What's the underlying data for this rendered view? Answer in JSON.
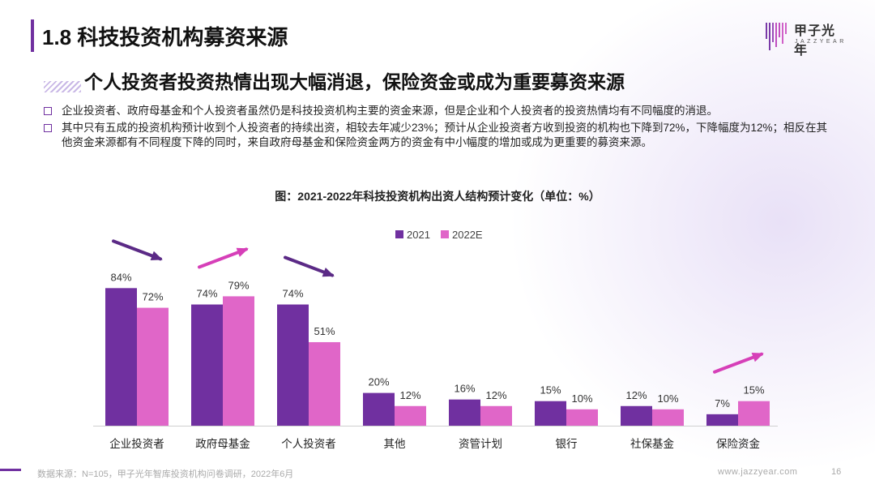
{
  "header": {
    "title": "1.8 科技投资机构募资来源",
    "logo_name": "甲子光年",
    "logo_en": "JAZZYEAR"
  },
  "subtitle": "个人投资者投资热情出现大幅消退，保险资金或成为重要募资来源",
  "bullets": [
    "企业投资者、政府母基金和个人投资者虽然仍是科技投资机构主要的资金来源，但是企业和个人投资者的投资热情均有不同幅度的消退。",
    "其中只有五成的投资机构预计收到个人投资者的持续出资，相较去年减少23%；预计从企业投资者方收到投资的机构也下降到72%，下降幅度为12%；相反在其他资金来源都有不同程度下降的同时，来自政府母基金和保险资金两方的资金有中小幅度的增加或成为更重要的募资来源。"
  ],
  "chart_data": {
    "type": "bar",
    "title": "图：2021-2022年科技投资机构出资人结构预计变化（单位：%）",
    "categories": [
      "企业投资者",
      "政府母基金",
      "个人投资者",
      "其他",
      "资管计划",
      "银行",
      "社保基金",
      "保险资金"
    ],
    "series": [
      {
        "name": "2021",
        "color": "#7030A0",
        "values": [
          84,
          74,
          74,
          20,
          16,
          15,
          12,
          7
        ]
      },
      {
        "name": "2022E",
        "color": "#E066C8",
        "values": [
          72,
          79,
          51,
          12,
          12,
          10,
          10,
          15
        ]
      }
    ],
    "value_suffix": "%",
    "trend_arrows": [
      {
        "category": "企业投资者",
        "direction": "down",
        "color": "#5B2A86"
      },
      {
        "category": "政府母基金",
        "direction": "up",
        "color": "#D63FB8"
      },
      {
        "category": "个人投资者",
        "direction": "down",
        "color": "#5B2A86"
      },
      {
        "category": "保险资金",
        "direction": "up",
        "color": "#D63FB8"
      }
    ],
    "ylim": [
      0,
      100
    ],
    "legend": "top-center",
    "grid": false
  },
  "footer": {
    "source": "数据来源：N=105，甲子光年智库投资机构问卷调研，2022年6月",
    "website": "www.jazzyear.com",
    "page": "16"
  }
}
